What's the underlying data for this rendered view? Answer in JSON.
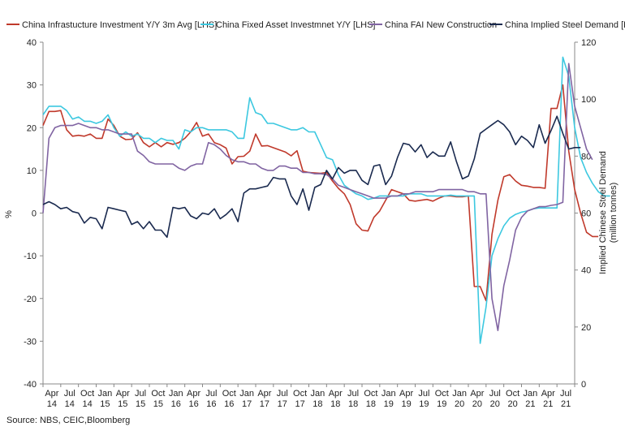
{
  "chart_data": {
    "type": "line",
    "title": "",
    "legend_position": "top",
    "xlabel": "",
    "ylabel_left": "%",
    "ylabel_right": [
      "Implied Chinese Steel Demand",
      "(million tonnes)"
    ],
    "ylim_left": [
      -40,
      40
    ],
    "ylim_right": [
      0,
      120
    ],
    "yticks_left": [
      40,
      30,
      20,
      10,
      0,
      -10,
      -20,
      -30,
      -40
    ],
    "yticks_right": [
      120,
      100,
      80,
      60,
      40,
      20,
      0
    ],
    "x_start": "2014-04",
    "x_ticks": [
      {
        "month": "Apr",
        "year": "14"
      },
      {
        "month": "Jul",
        "year": "14"
      },
      {
        "month": "Oct",
        "year": "14"
      },
      {
        "month": "Jan",
        "year": "15"
      },
      {
        "month": "Apr",
        "year": "15"
      },
      {
        "month": "Jul",
        "year": "15"
      },
      {
        "month": "Oct",
        "year": "15"
      },
      {
        "month": "Jan",
        "year": "16"
      },
      {
        "month": "Apr",
        "year": "16"
      },
      {
        "month": "Jul",
        "year": "16"
      },
      {
        "month": "Oct",
        "year": "16"
      },
      {
        "month": "Jan",
        "year": "17"
      },
      {
        "month": "Apr",
        "year": "17"
      },
      {
        "month": "Jul",
        "year": "17"
      },
      {
        "month": "Oct",
        "year": "17"
      },
      {
        "month": "Jan",
        "year": "18"
      },
      {
        "month": "Apr",
        "year": "18"
      },
      {
        "month": "Jul",
        "year": "18"
      },
      {
        "month": "Oct",
        "year": "18"
      },
      {
        "month": "Jan",
        "year": "19"
      },
      {
        "month": "Apr",
        "year": "19"
      },
      {
        "month": "Jul",
        "year": "19"
      },
      {
        "month": "Oct",
        "year": "19"
      },
      {
        "month": "Jan",
        "year": "20"
      },
      {
        "month": "Apr",
        "year": "20"
      },
      {
        "month": "Jul",
        "year": "20"
      },
      {
        "month": "Oct",
        "year": "20"
      },
      {
        "month": "Jan",
        "year": "21"
      },
      {
        "month": "Apr",
        "year": "21"
      },
      {
        "month": "Jul",
        "year": "21"
      }
    ],
    "series": [
      {
        "name": "China Infrastucture Investment Y/Y 3m Avg [LHS]",
        "axis": "left",
        "color": "#C0392B",
        "values": [
          20.5,
          23.8,
          23.8,
          24,
          19.5,
          18,
          18.2,
          18,
          18.5,
          17.5,
          17.5,
          22,
          20.5,
          18,
          17.2,
          17.3,
          18.8,
          16.5,
          15.5,
          16.5,
          15.5,
          16.5,
          16.1,
          16.5,
          17.5,
          19,
          21.2,
          18,
          18.5,
          16.5,
          16,
          15.2,
          11.5,
          13.2,
          13.3,
          14.5,
          18.5,
          15.7,
          15.8,
          15.3,
          14.8,
          14.3,
          13.4,
          14.6,
          9.8,
          9.5,
          9.4,
          9.3,
          9.5,
          7.5,
          5.8,
          4.5,
          2,
          -2.5,
          -4,
          -4.2,
          -1,
          0.5,
          3,
          5.5,
          5,
          4.5,
          3,
          2.8,
          3,
          3.2,
          2.8,
          3.5,
          4,
          4,
          3.8,
          3.8,
          4,
          -17.2,
          -17.2,
          -20.5,
          -5,
          3,
          8.5,
          9,
          7.5,
          6.5,
          6.3,
          6,
          6,
          5.8,
          24.5,
          24.5,
          30,
          14.5,
          5.5,
          0,
          -4.5,
          -5.5,
          -5.5
        ]
      },
      {
        "name": "China Fixed Asset Investmnet Y/Y [LHS]",
        "axis": "left",
        "color": "#3CC8E0",
        "values": [
          23,
          25,
          25,
          25,
          24,
          22,
          22.5,
          21.5,
          21.5,
          21,
          21.5,
          23,
          20,
          18,
          19,
          18,
          18.5,
          17.5,
          17.5,
          16.5,
          17.5,
          17,
          17,
          15,
          19.5,
          19,
          20,
          20,
          19.5,
          19.5,
          19.5,
          19.5,
          19,
          17.5,
          17.5,
          27,
          23.5,
          23,
          21,
          21,
          20.5,
          20,
          19.5,
          19.5,
          20,
          19,
          19,
          16,
          13,
          12.5,
          9,
          6.5,
          5.5,
          4.5,
          4,
          3.2,
          3.5,
          4,
          4,
          4,
          4,
          4,
          4.5,
          4.5,
          4.5,
          4,
          4,
          4,
          4,
          4.2,
          4,
          4,
          4,
          4,
          -30.5,
          -22,
          -10,
          -6,
          -3,
          -1.2,
          -0.3,
          0.2,
          0.5,
          1,
          1.2,
          1.2,
          1.2,
          1.2,
          36.5,
          32,
          20,
          13,
          9.5,
          7,
          5,
          4,
          4
        ]
      },
      {
        "name": "China FAI New Construction",
        "axis": "left",
        "color": "#8064A2",
        "values": [
          0,
          17.5,
          20,
          20.5,
          20.5,
          20.5,
          21,
          20.5,
          20,
          20,
          19.5,
          19.5,
          19,
          18.5,
          18.5,
          18.5,
          14.5,
          13.5,
          12,
          11.5,
          11.5,
          11.5,
          11.5,
          10.5,
          10,
          11,
          11.5,
          11.5,
          16.5,
          16,
          15,
          13.5,
          12.5,
          12,
          12,
          11.5,
          11.5,
          10.5,
          10,
          10,
          11,
          11,
          10.5,
          10.5,
          9.5,
          9.5,
          9.2,
          9.2,
          9,
          8,
          6.5,
          6,
          5.5,
          5,
          4.5,
          4,
          3.5,
          3.5,
          3.5,
          4,
          4,
          4.5,
          4.5,
          5,
          5,
          5,
          5,
          5.5,
          5.5,
          5.5,
          5.5,
          5.5,
          5,
          5,
          4.5,
          4.5,
          -20,
          -27.5,
          -17,
          -11,
          -4,
          -1,
          0.5,
          1,
          1.5,
          1.5,
          1.8,
          2,
          2.5,
          35,
          25,
          20,
          15,
          12.5
        ]
      },
      {
        "name": "China Implied Steel Demand [RHS]",
        "axis": "right",
        "color": "#1A2A4F",
        "values": [
          63,
          64,
          63,
          61.5,
          62,
          60.5,
          60,
          56.5,
          58.5,
          58,
          54.5,
          62,
          61.5,
          61,
          60.5,
          56,
          57,
          54.5,
          57,
          54,
          54,
          51.5,
          62,
          61.5,
          62,
          59,
          58,
          60,
          59.5,
          61.5,
          58,
          59.5,
          61.5,
          57,
          67,
          68.5,
          68.5,
          69,
          69.5,
          72.5,
          72,
          72,
          66,
          63,
          68.5,
          61,
          69,
          70,
          75,
          72,
          76,
          74,
          75,
          75,
          71.5,
          70,
          76.5,
          77,
          70,
          73,
          79.5,
          84.5,
          84,
          81.5,
          84,
          79.5,
          81.5,
          80,
          80,
          85,
          78,
          72,
          73,
          79,
          88,
          89.5,
          91,
          92.5,
          91,
          88.5,
          84,
          87,
          85.5,
          83,
          91,
          84.5,
          89,
          94,
          88,
          82.5,
          83,
          83
        ]
      }
    ],
    "source": "Source: NBS, CEIC,Bloomberg"
  }
}
